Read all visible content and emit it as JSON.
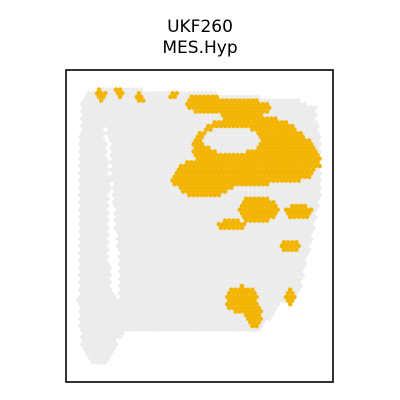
{
  "chart_data": {
    "type": "scatter",
    "title": "UKF260",
    "subtitle": "MES.Hyp",
    "xlabel": "",
    "ylabel": "",
    "grid": false,
    "axis_ticks": false,
    "colors": {
      "background_spots": "#ebebeb",
      "highlight_spots": "#f2b400",
      "frame": "#000000"
    },
    "series": [
      {
        "role": "all-spots",
        "tissue_region": [
          [
            86,
            92
          ],
          [
            112,
            88
          ],
          [
            150,
            90
          ],
          [
            200,
            92
          ],
          [
            250,
            96
          ],
          [
            300,
            100
          ],
          [
            316,
            108
          ],
          [
            320,
            140
          ],
          [
            320,
            200
          ],
          [
            312,
            240
          ],
          [
            304,
            270
          ],
          [
            300,
            295
          ],
          [
            285,
            300
          ],
          [
            272,
            315
          ],
          [
            262,
            330
          ],
          [
            240,
            332
          ],
          [
            180,
            332
          ],
          [
            128,
            330
          ],
          [
            118,
            340
          ],
          [
            108,
            362
          ],
          [
            94,
            365
          ],
          [
            82,
            350
          ],
          [
            78,
            300
          ],
          [
            80,
            220
          ],
          [
            80,
            140
          ],
          [
            82,
            100
          ]
        ],
        "gap_region": [
          [
            104,
            125
          ],
          [
            110,
            180
          ],
          [
            108,
            245
          ],
          [
            112,
            290
          ],
          [
            120,
            300
          ],
          [
            118,
            250
          ],
          [
            112,
            190
          ],
          [
            110,
            140
          ]
        ]
      },
      {
        "role": "MES.Hyp-high",
        "clusters": [
          {
            "cx": 250,
            "cy": 150,
            "rx": 58,
            "ry": 36,
            "inner": {
              "cx": 232,
              "cy": 140,
              "rx": 28,
              "ry": 14
            }
          },
          {
            "cx": 205,
            "cy": 104,
            "rx": 20,
            "ry": 10
          },
          {
            "cx": 240,
            "cy": 108,
            "rx": 32,
            "ry": 9
          },
          {
            "cx": 205,
            "cy": 178,
            "rx": 32,
            "ry": 20
          },
          {
            "cx": 285,
            "cy": 172,
            "rx": 28,
            "ry": 10
          },
          {
            "cx": 300,
            "cy": 148,
            "rx": 16,
            "ry": 12
          },
          {
            "cx": 312,
            "cy": 160,
            "rx": 9,
            "ry": 12
          },
          {
            "cx": 258,
            "cy": 210,
            "rx": 20,
            "ry": 14
          },
          {
            "cx": 232,
            "cy": 225,
            "rx": 14,
            "ry": 6
          },
          {
            "cx": 298,
            "cy": 212,
            "rx": 14,
            "ry": 8
          },
          {
            "cx": 290,
            "cy": 246,
            "rx": 10,
            "ry": 5
          },
          {
            "cx": 242,
            "cy": 300,
            "rx": 16,
            "ry": 14
          },
          {
            "cx": 254,
            "cy": 316,
            "rx": 8,
            "ry": 12
          },
          {
            "cx": 290,
            "cy": 298,
            "rx": 5,
            "ry": 9
          },
          {
            "cx": 101,
            "cy": 96,
            "rx": 5,
            "ry": 7
          },
          {
            "cx": 120,
            "cy": 93,
            "rx": 5,
            "ry": 6
          },
          {
            "cx": 140,
            "cy": 98,
            "rx": 4,
            "ry": 6
          },
          {
            "cx": 174,
            "cy": 95,
            "rx": 4,
            "ry": 5
          },
          {
            "cx": 180,
            "cy": 180,
            "rx": 8,
            "ry": 3
          }
        ]
      }
    ]
  }
}
